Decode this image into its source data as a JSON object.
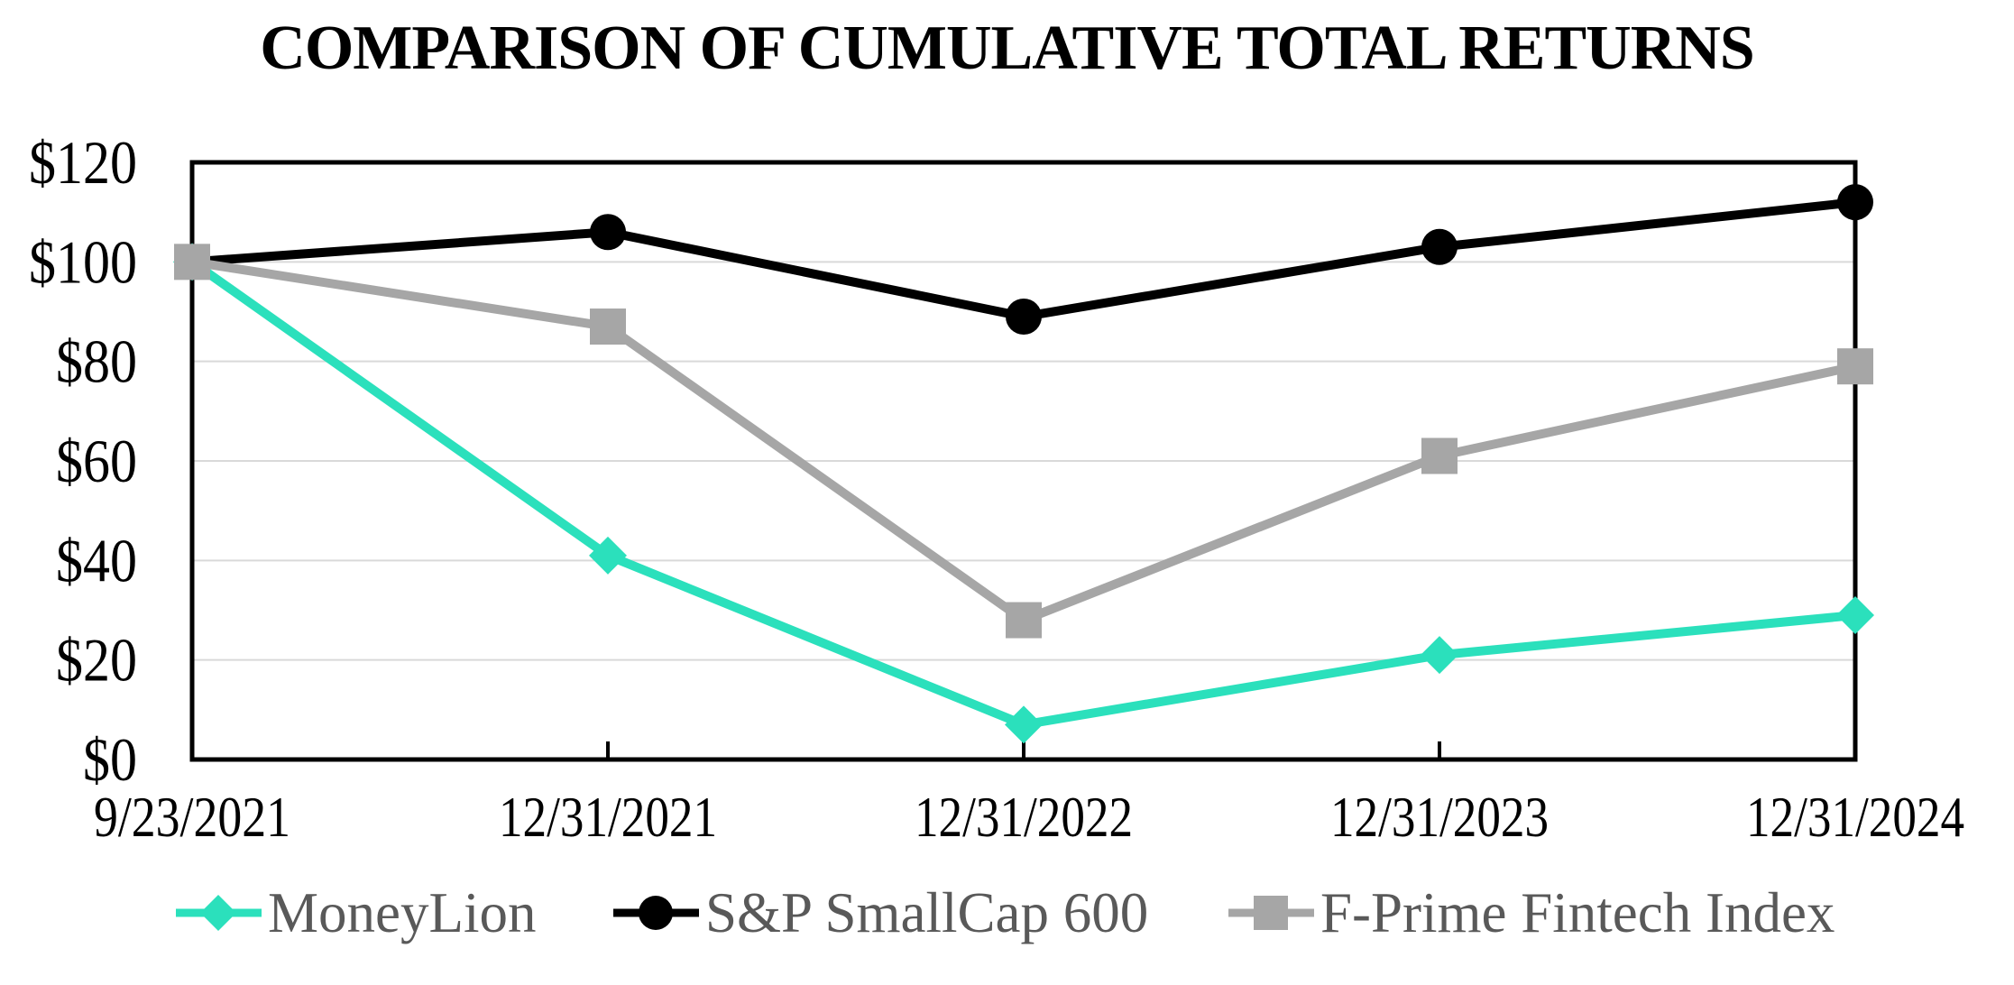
{
  "chart_data": {
    "type": "line",
    "title": "COMPARISON OF CUMULATIVE TOTAL RETURNS",
    "x": [
      "9/23/2021",
      "12/31/2021",
      "12/31/2022",
      "12/31/2023",
      "12/31/2024"
    ],
    "series": [
      {
        "name": "MoneyLion",
        "marker": "diamond",
        "color": "#2BE0BC",
        "values": [
          100,
          41,
          7,
          21,
          29
        ]
      },
      {
        "name": "S&P SmallCap 600",
        "marker": "circle",
        "color": "#000000",
        "values": [
          100,
          106,
          89,
          103,
          112
        ]
      },
      {
        "name": "F-Prime Fintech Index",
        "marker": "square",
        "color": "#A6A6A6",
        "values": [
          100,
          87,
          28,
          61,
          79
        ]
      }
    ],
    "ylim": [
      0,
      120
    ],
    "y_tick_step": 20,
    "y_tick_labels": [
      "$0",
      "$20",
      "$40",
      "$60",
      "$80",
      "$100",
      "$120"
    ],
    "currency_prefix": "$",
    "grid": "horizontal",
    "legend_position": "bottom",
    "colors": {
      "background": "#FFFFFF",
      "gridline": "#D9D9D9",
      "axis": "#000000",
      "tick_label": "#000000",
      "legend_text": "#595959"
    }
  }
}
